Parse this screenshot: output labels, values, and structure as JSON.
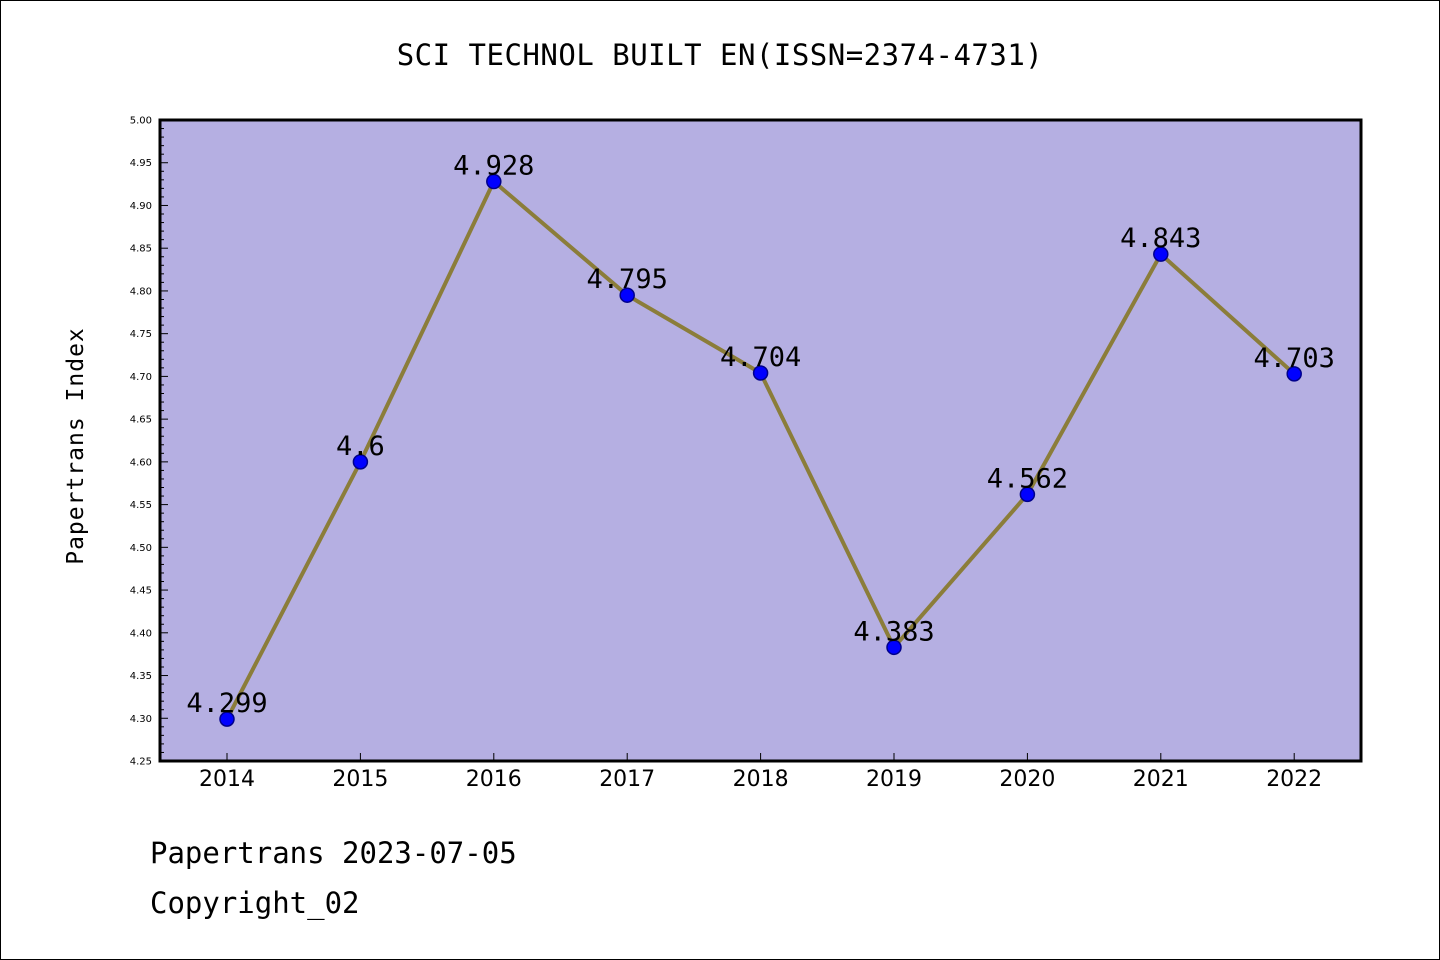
{
  "chart_data": {
    "type": "line",
    "title": "SCI TECHNOL BUILT EN(ISSN=2374-4731)",
    "xlabel": "",
    "ylabel": "Papertrans Index",
    "categories": [
      "2014",
      "2015",
      "2016",
      "2017",
      "2018",
      "2019",
      "2020",
      "2021",
      "2022"
    ],
    "series": [
      {
        "values": [
          4.299,
          4.6,
          4.928,
          4.795,
          4.704,
          4.383,
          4.562,
          4.843,
          4.703
        ],
        "labels": [
          "4.299",
          "4.6",
          "4.928",
          "4.795",
          "4.704",
          "4.383",
          "4.562",
          "4.843",
          "4.703"
        ]
      }
    ],
    "ylim": [
      4.25,
      5.0
    ],
    "yticks": [
      "4.25",
      "4.30",
      "4.35",
      "4.40",
      "4.45",
      "4.50",
      "4.55",
      "4.60",
      "4.65",
      "4.70",
      "4.75",
      "4.80",
      "4.85",
      "4.90",
      "4.95",
      "5.00"
    ],
    "grid": false,
    "colors": {
      "plot_background": "#b5afe2",
      "line": "#8b7d3a",
      "marker": "#0000ff",
      "marker_edge": "#00008b",
      "axes": "#000000"
    }
  },
  "footer": {
    "line1": "Papertrans 2023-07-05",
    "line2": "Copyright_02"
  }
}
